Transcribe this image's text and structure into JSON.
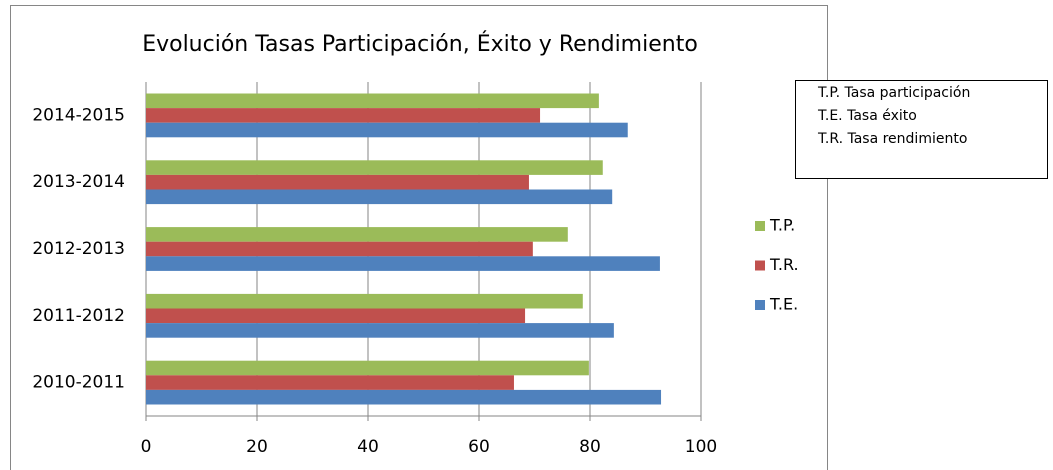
{
  "chart_data": {
    "type": "barh",
    "title": "Evolución Tasas Participación, Éxito y Rendimiento",
    "categories": [
      "2010-2011",
      "2011-2012",
      "2012-2013",
      "2013-2014",
      "2014-2015"
    ],
    "series": [
      {
        "name": "T.P.",
        "color": "#9bbb59",
        "values": [
          79.8,
          78.7,
          76,
          82.3,
          81.6
        ]
      },
      {
        "name": "T.R.",
        "color": "#c0504d",
        "values": [
          66.3,
          68.3,
          69.7,
          69,
          71
        ]
      },
      {
        "name": "T.E.",
        "color": "#4f81bd",
        "values": [
          92.8,
          84.3,
          92.6,
          84,
          86.8
        ]
      }
    ],
    "xlim": [
      0,
      100
    ],
    "xticks": [
      0,
      20,
      40,
      60,
      80,
      100
    ],
    "grid": true,
    "annotations": [
      "T.P. Tasa participación",
      "T.E. Tasa éxito",
      "T.R. Tasa rendimiento"
    ]
  }
}
